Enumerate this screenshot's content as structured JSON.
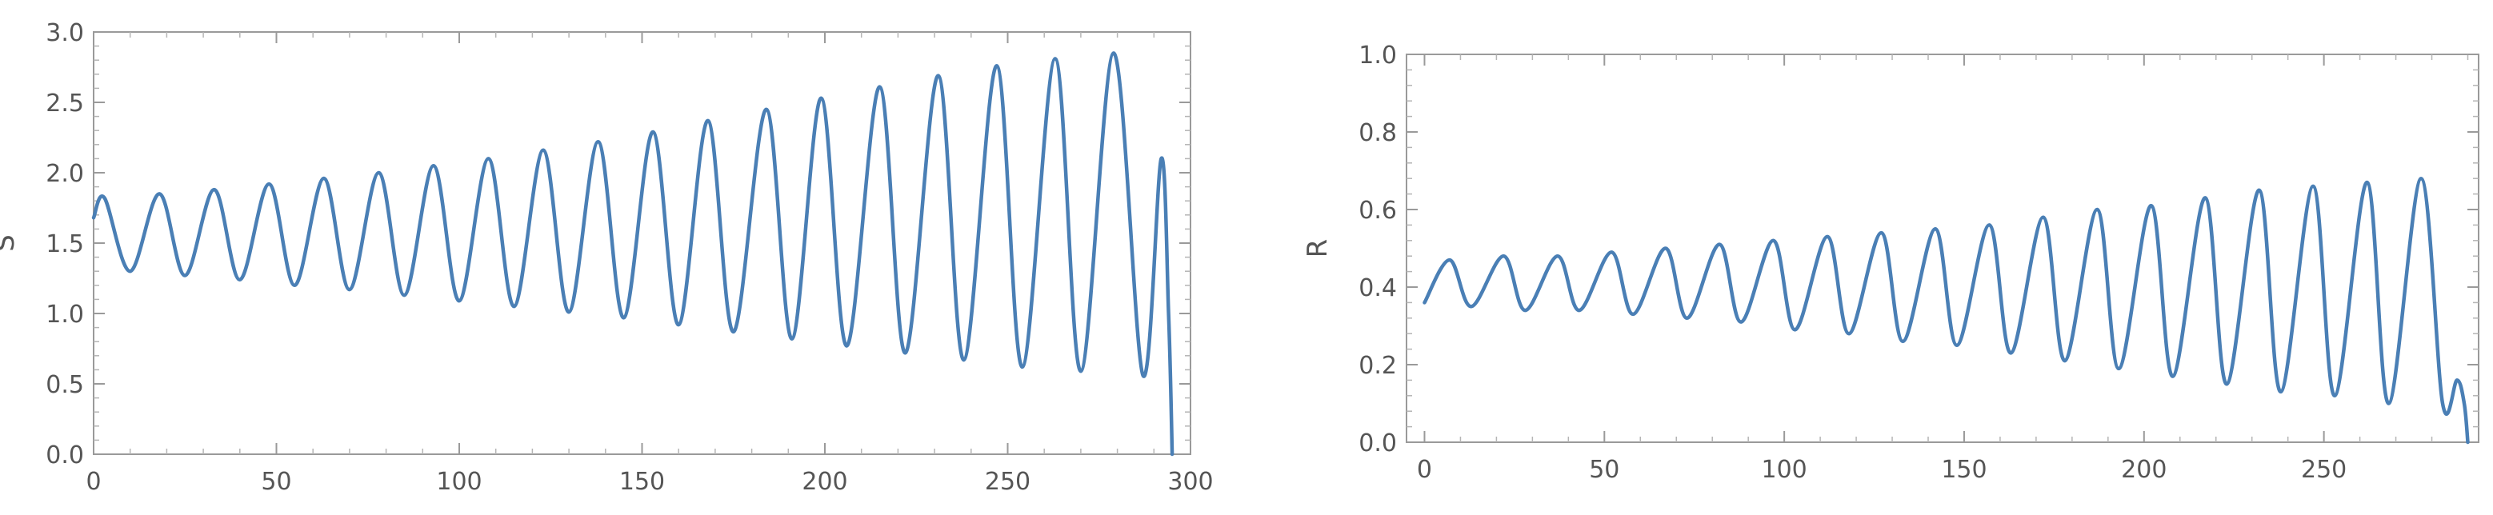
{
  "chart_data": [
    {
      "type": "line",
      "title": "",
      "xlabel": "",
      "ylabel": "S",
      "xlim": [
        0,
        300
      ],
      "ylim": [
        0,
        3.0
      ],
      "xticks": [
        0,
        50,
        100,
        150,
        200,
        250,
        300
      ],
      "yticks": [
        0.0,
        0.5,
        1.0,
        1.5,
        2.0,
        2.5,
        3.0
      ],
      "xtick_labels": [
        "0",
        "50",
        "100",
        "150",
        "200",
        "250",
        "300"
      ],
      "ytick_labels": [
        "0.0",
        "0.5",
        "1.0",
        "1.5",
        "2.0",
        "2.5",
        "3.0"
      ],
      "grid": false,
      "line_color": "#4a7fb5",
      "series": [
        {
          "x": [
            0,
            3,
            10,
            18,
            25,
            33,
            40,
            48,
            55,
            63,
            70,
            78,
            85,
            93,
            100,
            108,
            115,
            123,
            130,
            138,
            145,
            153,
            160,
            168,
            175,
            184,
            191,
            199,
            206,
            215,
            222,
            231,
            238,
            247,
            254,
            263,
            270,
            279,
            287,
            292,
            294,
            295
          ],
          "y": [
            1.68,
            1.82,
            1.3,
            1.85,
            1.27,
            1.88,
            1.24,
            1.92,
            1.2,
            1.96,
            1.17,
            2.0,
            1.13,
            2.05,
            1.09,
            2.1,
            1.05,
            2.16,
            1.01,
            2.22,
            0.97,
            2.29,
            0.92,
            2.37,
            0.87,
            2.45,
            0.82,
            2.53,
            0.77,
            2.61,
            0.72,
            2.69,
            0.67,
            2.76,
            0.62,
            2.81,
            0.59,
            2.85,
            0.56,
            2.1,
            1.0,
            0.0
          ]
        }
      ]
    },
    {
      "type": "line",
      "title": "",
      "xlabel": "",
      "ylabel": "R",
      "xlim": [
        -5,
        293
      ],
      "ylim": [
        0,
        1.0
      ],
      "xticks": [
        0,
        50,
        100,
        150,
        200,
        250
      ],
      "yticks": [
        0.0,
        0.2,
        0.4,
        0.6,
        0.8,
        1.0
      ],
      "xtick_labels": [
        "0",
        "50",
        "100",
        "150",
        "200",
        "250"
      ],
      "ytick_labels": [
        "0.0",
        "0.2",
        "0.4",
        "0.6",
        "0.8",
        "1.0"
      ],
      "grid": false,
      "line_color": "#4a7fb5",
      "series": [
        {
          "x": [
            0,
            7,
            13,
            22,
            28,
            37,
            43,
            52,
            58,
            67,
            73,
            82,
            88,
            97,
            103,
            112,
            118,
            127,
            133,
            142,
            148,
            157,
            163,
            172,
            178,
            187,
            193,
            202,
            208,
            217,
            223,
            232,
            238,
            247,
            253,
            262,
            268,
            277,
            283,
            287,
            289,
            290
          ],
          "y": [
            0.36,
            0.47,
            0.35,
            0.48,
            0.34,
            0.48,
            0.34,
            0.49,
            0.33,
            0.5,
            0.32,
            0.51,
            0.31,
            0.52,
            0.29,
            0.53,
            0.28,
            0.54,
            0.26,
            0.55,
            0.25,
            0.56,
            0.23,
            0.58,
            0.21,
            0.6,
            0.19,
            0.61,
            0.17,
            0.63,
            0.15,
            0.65,
            0.13,
            0.66,
            0.12,
            0.67,
            0.1,
            0.68,
            0.1,
            0.16,
            0.1,
            0.0
          ]
        }
      ]
    }
  ]
}
